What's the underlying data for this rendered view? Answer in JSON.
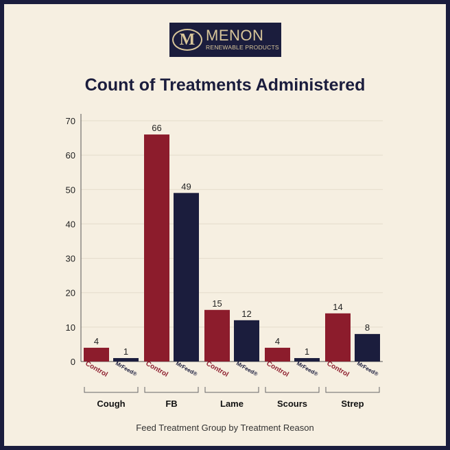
{
  "logo": {
    "mark": "M",
    "name": "MENON",
    "tagline": "RENEWABLE PRODUCTS"
  },
  "colors": {
    "control": "#8c1c2c",
    "mrfeed": "#1b1d3d",
    "background": "#f6efe1",
    "frame": "#1b1d3d",
    "logo_text": "#d8c69a"
  },
  "chart_data": {
    "type": "bar",
    "title": "Count of Treatments Administered",
    "xlabel": "Feed Treatment Group by Treatment Reason",
    "ylabel": "",
    "ylim": [
      0,
      70
    ],
    "yticks": [
      0,
      10,
      20,
      30,
      40,
      50,
      60,
      70
    ],
    "grid": true,
    "categories": [
      "Cough",
      "FB",
      "Lame",
      "Scours",
      "Strep"
    ],
    "series": [
      {
        "name": "Control",
        "values": [
          4,
          66,
          15,
          4,
          14
        ]
      },
      {
        "name": "MrFeed®",
        "values": [
          1,
          49,
          12,
          1,
          8
        ]
      }
    ]
  }
}
